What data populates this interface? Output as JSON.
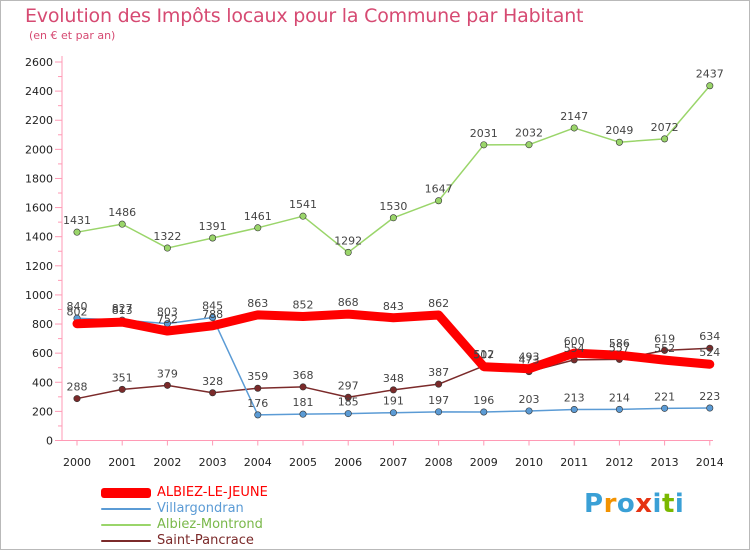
{
  "title": "Evolution des Impôts locaux pour la Commune par Habitant",
  "subtitle": "(en € et par an)",
  "logo": {
    "text": "Proxiti",
    "colors": [
      "#3aa0d6",
      "#f39200",
      "#3aa0d6",
      "#e63312",
      "#3aa0d6",
      "#7ab800",
      "#3aa0d6"
    ]
  },
  "chart_data": {
    "type": "line",
    "title": "Evolution des Impôts locaux pour la Commune par Habitant",
    "subtitle": "(en € et par an)",
    "xlabel": "",
    "ylabel": "",
    "ylim": [
      0,
      2600
    ],
    "yticks": [
      0,
      200,
      400,
      600,
      800,
      1000,
      1200,
      1400,
      1600,
      1800,
      2000,
      2200,
      2400,
      2600
    ],
    "x": [
      "2000",
      "2001",
      "2002",
      "2003",
      "2004",
      "2005",
      "2006",
      "2007",
      "2008",
      "2009",
      "2010",
      "2011",
      "2012",
      "2013",
      "2014"
    ],
    "grid": false,
    "legend_position": "bottom-left",
    "series": [
      {
        "name": "ALBIEZ-LE-JEUNE",
        "color": "#ff0000",
        "values": [
          802,
          813,
          752,
          788,
          863,
          852,
          868,
          843,
          862,
          507,
          493,
          600,
          586,
          552,
          524
        ]
      },
      {
        "name": "Villargondran",
        "color": "#5b9bd5",
        "values": [
          840,
          827,
          803,
          845,
          176,
          181,
          185,
          191,
          197,
          196,
          203,
          213,
          214,
          221,
          223
        ]
      },
      {
        "name": "Albiez-Montrond",
        "color": "#9ad56a",
        "values": [
          1431,
          1486,
          1322,
          1391,
          1461,
          1541,
          1292,
          1530,
          1647,
          2031,
          2032,
          2147,
          2049,
          2072,
          2437
        ]
      },
      {
        "name": "Saint-Pancrace",
        "color": "#7b2a2a",
        "values": [
          288,
          351,
          379,
          328,
          359,
          368,
          297,
          348,
          387,
          512,
          473,
          554,
          557,
          619,
          634
        ]
      }
    ]
  }
}
